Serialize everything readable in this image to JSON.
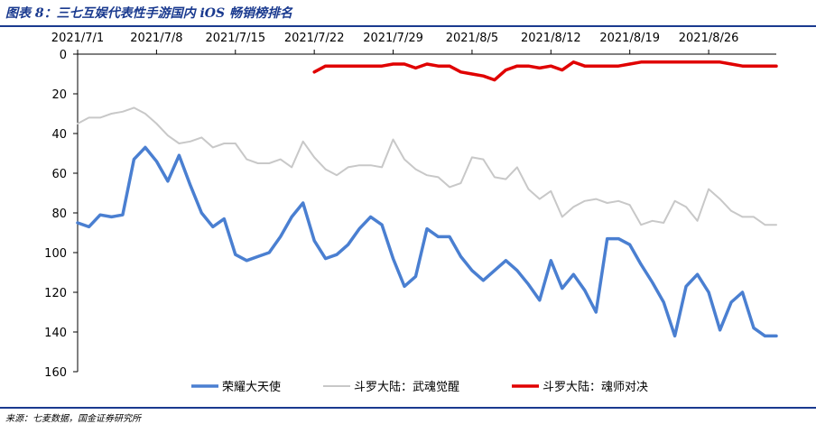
{
  "header": {
    "title": "图表 8：三七互娱代表性手游国内 iOS 畅销榜排名"
  },
  "footer": {
    "source": "来源：七麦数据，国金证券研究所"
  },
  "chart_data": {
    "type": "line",
    "title": "图表 8：三七互娱代表性手游国内 iOS 畅销榜排名",
    "xlabel": "",
    "ylabel": "",
    "x_ticks": [
      "2021/7/1",
      "2021/7/8",
      "2021/7/15",
      "2021/7/22",
      "2021/7/29",
      "2021/8/5",
      "2021/8/12",
      "2021/8/19",
      "2021/8/26"
    ],
    "x_start": "2021/7/1",
    "x_end": "2021/9/1",
    "y_axis_inverted": true,
    "x_axis_position": "top",
    "ylim": [
      0,
      160
    ],
    "y_ticks": [
      0,
      20,
      40,
      60,
      80,
      100,
      120,
      140,
      160
    ],
    "grid": false,
    "legend_position": "bottom",
    "series": [
      {
        "name": "荣耀大天使",
        "color": "#4a7fd1",
        "x": [
          "2021/7/1",
          "2021/7/2",
          "2021/7/3",
          "2021/7/4",
          "2021/7/5",
          "2021/7/6",
          "2021/7/7",
          "2021/7/8",
          "2021/7/9",
          "2021/7/10",
          "2021/7/11",
          "2021/7/12",
          "2021/7/13",
          "2021/7/14",
          "2021/7/15",
          "2021/7/16",
          "2021/7/17",
          "2021/7/18",
          "2021/7/19",
          "2021/7/20",
          "2021/7/21",
          "2021/7/22",
          "2021/7/23",
          "2021/7/24",
          "2021/7/25",
          "2021/7/26",
          "2021/7/27",
          "2021/7/28",
          "2021/7/29",
          "2021/7/30",
          "2021/7/31",
          "2021/8/1",
          "2021/8/2",
          "2021/8/3",
          "2021/8/4",
          "2021/8/5",
          "2021/8/6",
          "2021/8/7",
          "2021/8/8",
          "2021/8/9",
          "2021/8/10",
          "2021/8/11",
          "2021/8/12",
          "2021/8/13",
          "2021/8/14",
          "2021/8/15",
          "2021/8/16",
          "2021/8/17",
          "2021/8/18",
          "2021/8/19",
          "2021/8/20",
          "2021/8/21",
          "2021/8/22",
          "2021/8/23",
          "2021/8/24",
          "2021/8/25",
          "2021/8/26",
          "2021/8/27",
          "2021/8/28",
          "2021/8/29",
          "2021/8/30",
          "2021/8/31",
          "2021/9/1"
        ],
        "values": [
          85,
          87,
          81,
          82,
          81,
          53,
          47,
          54,
          64,
          51,
          66,
          80,
          87,
          83,
          101,
          104,
          102,
          100,
          92,
          82,
          75,
          94,
          103,
          101,
          96,
          88,
          82,
          86,
          103,
          117,
          112,
          88,
          92,
          92,
          102,
          109,
          114,
          109,
          104,
          109,
          116,
          124,
          104,
          118,
          111,
          119,
          130,
          93,
          93,
          96,
          106,
          115,
          125,
          142,
          117,
          111,
          120,
          139,
          125,
          120,
          138,
          142,
          142
        ]
      },
      {
        "name": "斗罗大陆：武魂觉醒",
        "color": "#c8c8c8",
        "x": [
          "2021/7/1",
          "2021/7/2",
          "2021/7/3",
          "2021/7/4",
          "2021/7/5",
          "2021/7/6",
          "2021/7/7",
          "2021/7/8",
          "2021/7/9",
          "2021/7/10",
          "2021/7/11",
          "2021/7/12",
          "2021/7/13",
          "2021/7/14",
          "2021/7/15",
          "2021/7/16",
          "2021/7/17",
          "2021/7/18",
          "2021/7/19",
          "2021/7/20",
          "2021/7/21",
          "2021/7/22",
          "2021/7/23",
          "2021/7/24",
          "2021/7/25",
          "2021/7/26",
          "2021/7/27",
          "2021/7/28",
          "2021/7/29",
          "2021/7/30",
          "2021/7/31",
          "2021/8/1",
          "2021/8/2",
          "2021/8/3",
          "2021/8/4",
          "2021/8/5",
          "2021/8/6",
          "2021/8/7",
          "2021/8/8",
          "2021/8/9",
          "2021/8/10",
          "2021/8/11",
          "2021/8/12",
          "2021/8/13",
          "2021/8/14",
          "2021/8/15",
          "2021/8/16",
          "2021/8/17",
          "2021/8/18",
          "2021/8/19",
          "2021/8/20",
          "2021/8/21",
          "2021/8/22",
          "2021/8/23",
          "2021/8/24",
          "2021/8/25",
          "2021/8/26",
          "2021/8/27",
          "2021/8/28",
          "2021/8/29",
          "2021/8/30",
          "2021/8/31",
          "2021/9/1"
        ],
        "values": [
          35,
          32,
          32,
          30,
          29,
          27,
          30,
          35,
          41,
          45,
          44,
          42,
          47,
          45,
          45,
          53,
          55,
          55,
          53,
          57,
          44,
          52,
          58,
          61,
          57,
          56,
          56,
          57,
          43,
          53,
          58,
          61,
          62,
          67,
          65,
          52,
          53,
          62,
          63,
          57,
          68,
          73,
          69,
          82,
          77,
          74,
          73,
          75,
          74,
          76,
          86,
          84,
          85,
          74,
          77,
          84,
          68,
          73,
          79,
          82,
          82,
          86,
          86
        ]
      },
      {
        "name": "斗罗大陆：魂师对决",
        "color": "#e00000",
        "x": [
          "2021/7/22",
          "2021/7/23",
          "2021/7/24",
          "2021/7/25",
          "2021/7/26",
          "2021/7/27",
          "2021/7/28",
          "2021/7/29",
          "2021/7/30",
          "2021/7/31",
          "2021/8/1",
          "2021/8/2",
          "2021/8/3",
          "2021/8/4",
          "2021/8/5",
          "2021/8/6",
          "2021/8/7",
          "2021/8/8",
          "2021/8/9",
          "2021/8/10",
          "2021/8/11",
          "2021/8/12",
          "2021/8/13",
          "2021/8/14",
          "2021/8/15",
          "2021/8/16",
          "2021/8/17",
          "2021/8/18",
          "2021/8/19",
          "2021/8/20",
          "2021/8/21",
          "2021/8/22",
          "2021/8/23",
          "2021/8/24",
          "2021/8/25",
          "2021/8/26",
          "2021/8/27",
          "2021/8/28",
          "2021/8/29",
          "2021/8/30",
          "2021/8/31",
          "2021/9/1"
        ],
        "values": [
          9,
          6,
          6,
          6,
          6,
          6,
          6,
          5,
          5,
          7,
          5,
          6,
          6,
          9,
          10,
          11,
          13,
          8,
          6,
          6,
          7,
          6,
          8,
          4,
          6,
          6,
          6,
          6,
          5,
          4,
          4,
          4,
          4,
          4,
          4,
          4,
          4,
          5,
          6,
          6,
          6,
          6
        ]
      }
    ]
  }
}
